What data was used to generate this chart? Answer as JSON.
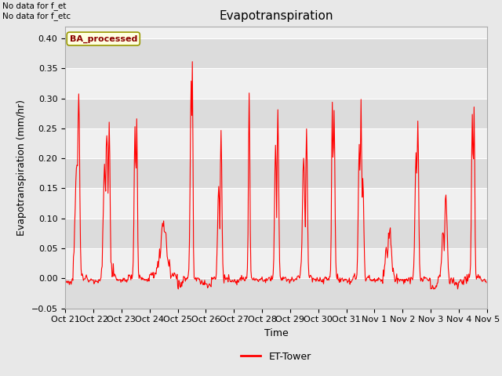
{
  "title": "Evapotranspiration",
  "xlabel": "Time",
  "ylabel": "Evapotranspiration (mm/hr)",
  "ylim": [
    -0.05,
    0.42
  ],
  "xlim": [
    0,
    360
  ],
  "yticks": [
    -0.05,
    0.0,
    0.05,
    0.1,
    0.15,
    0.2,
    0.25,
    0.3,
    0.35,
    0.4
  ],
  "line_color": "red",
  "line_width": 0.8,
  "bg_color": "#e8e8e8",
  "plot_bg_color": "#f0f0f0",
  "top_left_text": "No data for f_et\nNo data for f_etc",
  "legend_box_label": "BA_processed",
  "legend_line_label": "ET-Tower",
  "xtick_labels": [
    "Oct 21",
    "Oct 22",
    "Oct 23",
    "Oct 24",
    "Oct 25",
    "Oct 26",
    "Oct 27",
    "Oct 28",
    "Oct 29",
    "Oct 30",
    "Oct 31",
    "Nov 1",
    "Nov 2",
    "Nov 3",
    "Nov 4",
    "Nov 5"
  ],
  "xtick_positions": [
    0,
    24,
    48,
    72,
    96,
    120,
    144,
    168,
    192,
    216,
    240,
    264,
    288,
    312,
    336,
    360
  ],
  "stripe_color_dark": "#dcdcdc",
  "stripe_color_light": "#f0f0f0",
  "title_fontsize": 11,
  "label_fontsize": 9,
  "tick_fontsize": 8
}
